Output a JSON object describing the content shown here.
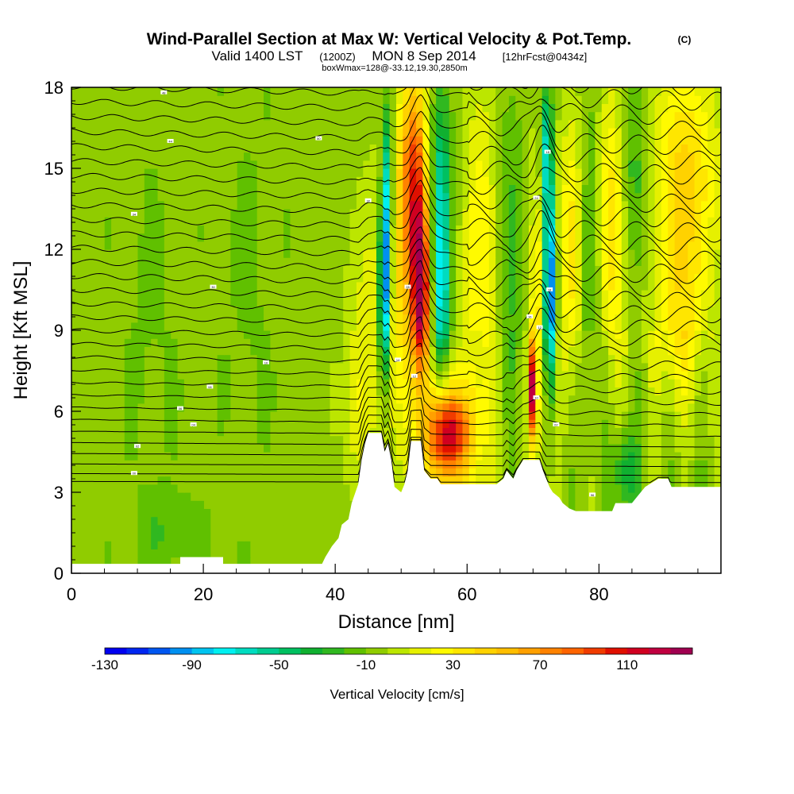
{
  "header": {
    "title": "Wind-Parallel Section at Max W: Vertical Velocity & Pot.Temp.",
    "copyright": "(C)",
    "valid_prefix": "Valid 1400 LST",
    "valid_utc": "(1200Z)",
    "valid_date": "MON 8 Sep 2014",
    "forecast": "[12hrFcst@0434z]",
    "box_info": "boxWmax=128@-33.12,19.30,2850m"
  },
  "chart_data": {
    "type": "heatmap",
    "xlabel": "Distance [nm]",
    "ylabel": "Height [Kft MSL]",
    "xlim": [
      0,
      98.5
    ],
    "ylim": [
      0,
      18
    ],
    "x_ticks": [
      "0",
      "20",
      "40",
      "60",
      "80"
    ],
    "x_tick_values": [
      0,
      20,
      40,
      60,
      80
    ],
    "y_ticks": [
      "0",
      "3",
      "6",
      "9",
      "12",
      "15",
      "18"
    ],
    "y_tick_values": [
      0,
      3,
      6,
      9,
      12,
      15,
      18
    ],
    "background_value": -5,
    "features": [
      {
        "x": 47.5,
        "y": 10.5,
        "w": 0.9,
        "h": 3.2,
        "v": -120
      },
      {
        "x": 48.0,
        "y": 14.5,
        "w": 0.8,
        "h": 3.0,
        "v": -70
      },
      {
        "x": 53.0,
        "y": 10.5,
        "w": 1.4,
        "h": 3.0,
        "v": 120
      },
      {
        "x": 52.0,
        "y": 15.0,
        "w": 1.8,
        "h": 3.5,
        "v": 70
      },
      {
        "x": 50.5,
        "y": 11.5,
        "w": 3.0,
        "h": 6.0,
        "v": 40
      },
      {
        "x": 56.0,
        "y": 10.5,
        "w": 1.4,
        "h": 3.5,
        "v": -80
      },
      {
        "x": 56.0,
        "y": 15.0,
        "w": 1.5,
        "h": 3.0,
        "v": -45
      },
      {
        "x": 57.0,
        "y": 5.2,
        "w": 3.0,
        "h": 1.4,
        "v": 75
      },
      {
        "x": 57.5,
        "y": 5.0,
        "w": 5.0,
        "h": 2.8,
        "v": 45
      },
      {
        "x": 62.0,
        "y": 12.0,
        "w": 2.5,
        "h": 6.0,
        "v": 30
      },
      {
        "x": 66.5,
        "y": 12.0,
        "w": 2.0,
        "h": 5.0,
        "v": -25
      },
      {
        "x": 70.0,
        "y": 6.8,
        "w": 0.5,
        "h": 1.8,
        "v": 120
      },
      {
        "x": 71.0,
        "y": 9.5,
        "w": 1.5,
        "h": 6.0,
        "v": 35
      },
      {
        "x": 72.5,
        "y": 10.5,
        "w": 0.9,
        "h": 3.5,
        "v": -130
      },
      {
        "x": 72.0,
        "y": 15.5,
        "w": 0.9,
        "h": 2.5,
        "v": -70
      },
      {
        "x": 76.0,
        "y": 12.0,
        "w": 2.0,
        "h": 5.0,
        "v": 40
      },
      {
        "x": 78.5,
        "y": 12.0,
        "w": 2.0,
        "h": 5.5,
        "v": -35
      },
      {
        "x": 82.0,
        "y": 13.0,
        "w": 2.5,
        "h": 5.0,
        "v": 45
      },
      {
        "x": 85.0,
        "y": 14.5,
        "w": 2.5,
        "h": 4.0,
        "v": -35
      },
      {
        "x": 93.0,
        "y": 14.5,
        "w": 5.0,
        "h": 4.5,
        "v": 45
      },
      {
        "x": 92.0,
        "y": 9.0,
        "w": 4.0,
        "h": 3.0,
        "v": 25
      },
      {
        "x": 84.0,
        "y": 3.8,
        "w": 1.8,
        "h": 1.5,
        "v": -40
      },
      {
        "x": 45.0,
        "y": 9.0,
        "w": 3.0,
        "h": 5.0,
        "v": 15
      },
      {
        "x": 43.0,
        "y": 6.0,
        "w": 2.0,
        "h": 2.5,
        "v": 10
      },
      {
        "x": 12.0,
        "y": 9.0,
        "w": 4.0,
        "h": 7.0,
        "v": -12
      },
      {
        "x": 27.0,
        "y": 11.0,
        "w": 4.0,
        "h": 7.0,
        "v": -12
      },
      {
        "x": 15.0,
        "y": 1.5,
        "w": 6.0,
        "h": 1.5,
        "v": -18
      }
    ],
    "terrain": [
      [
        0,
        0.35
      ],
      [
        16.5,
        0.35
      ],
      [
        16.5,
        0.6
      ],
      [
        23,
        0.6
      ],
      [
        23,
        0.35
      ],
      [
        38,
        0.35
      ],
      [
        38.5,
        0.6
      ],
      [
        39.5,
        1.0
      ],
      [
        40.5,
        1.3
      ],
      [
        41.0,
        1.8
      ],
      [
        42.0,
        2.0
      ],
      [
        42.5,
        2.6
      ],
      [
        43.5,
        3.3
      ],
      [
        44.0,
        4.2
      ],
      [
        44.5,
        4.8
      ],
      [
        45.0,
        5.2
      ],
      [
        47.0,
        5.2
      ],
      [
        47.5,
        4.5
      ],
      [
        48.0,
        4.8
      ],
      [
        48.5,
        4.2
      ],
      [
        49.0,
        3.2
      ],
      [
        50.0,
        3.0
      ],
      [
        50.5,
        3.3
      ],
      [
        51.0,
        3.8
      ],
      [
        51.5,
        4.9
      ],
      [
        53.0,
        4.9
      ],
      [
        53.5,
        3.8
      ],
      [
        54.5,
        3.5
      ],
      [
        55.5,
        3.5
      ],
      [
        56.0,
        3.3
      ],
      [
        64.5,
        3.3
      ],
      [
        65.5,
        3.5
      ],
      [
        66.0,
        3.8
      ],
      [
        67.0,
        3.5
      ],
      [
        67.5,
        3.8
      ],
      [
        68.5,
        4.2
      ],
      [
        71.0,
        4.2
      ],
      [
        71.5,
        3.8
      ],
      [
        72.0,
        3.5
      ],
      [
        72.5,
        3.2
      ],
      [
        73.0,
        3.0
      ],
      [
        74.0,
        2.8
      ],
      [
        74.5,
        2.6
      ],
      [
        75.5,
        2.4
      ],
      [
        76.5,
        2.3
      ],
      [
        82.0,
        2.3
      ],
      [
        82.5,
        2.6
      ],
      [
        85.0,
        2.6
      ],
      [
        86.0,
        2.9
      ],
      [
        87.0,
        3.2
      ],
      [
        89.0,
        3.5
      ],
      [
        90.5,
        3.5
      ],
      [
        91.0,
        3.2
      ],
      [
        98.5,
        3.2
      ]
    ],
    "potential_temperature_contours": {
      "count": 32,
      "labels": [
        {
          "x": 14,
          "y": 17.8,
          "text": "48"
        },
        {
          "x": 15,
          "y": 16.0,
          "text": "44"
        },
        {
          "x": 37.5,
          "y": 16.1,
          "text": "50"
        },
        {
          "x": 9.5,
          "y": 13.3,
          "text": "34"
        },
        {
          "x": 45,
          "y": 13.8,
          "text": "32"
        },
        {
          "x": 21.5,
          "y": 10.6,
          "text": "30"
        },
        {
          "x": 51,
          "y": 10.6,
          "text": "28"
        },
        {
          "x": 70.5,
          "y": 13.9,
          "text": "24"
        },
        {
          "x": 72.2,
          "y": 15.6,
          "text": "18"
        },
        {
          "x": 72.5,
          "y": 10.5,
          "text": "18"
        },
        {
          "x": 69.5,
          "y": 9.5,
          "text": "16"
        },
        {
          "x": 71,
          "y": 9.1,
          "text": "12"
        },
        {
          "x": 49.5,
          "y": 7.9,
          "text": "14"
        },
        {
          "x": 29.5,
          "y": 7.8,
          "text": "10"
        },
        {
          "x": 52,
          "y": 7.3,
          "text": "12"
        },
        {
          "x": 21,
          "y": 6.9,
          "text": "08"
        },
        {
          "x": 16.5,
          "y": 6.1,
          "text": "06"
        },
        {
          "x": 18.5,
          "y": 5.5,
          "text": "04"
        },
        {
          "x": 73.5,
          "y": 5.5,
          "text": "02"
        },
        {
          "x": 10,
          "y": 4.7,
          "text": "02"
        },
        {
          "x": 9.5,
          "y": 3.7,
          "text": "00"
        },
        {
          "x": 70.5,
          "y": 6.5,
          "text": "10"
        },
        {
          "x": 79,
          "y": 2.9,
          "text": "96"
        }
      ]
    },
    "colorbar": {
      "label": "Vertical Velocity [cm/s]",
      "min": -130,
      "step": 10,
      "ticks": [
        "-130",
        "-90",
        "-50",
        "-10",
        "30",
        "70",
        "110"
      ],
      "tick_values": [
        -130,
        -90,
        -50,
        -10,
        30,
        70,
        110
      ],
      "colors": [
        "#0000f0",
        "#0026f0",
        "#0056f0",
        "#0090f0",
        "#00c4f0",
        "#00f0f0",
        "#00dcc0",
        "#00cc90",
        "#00c060",
        "#10b030",
        "#30b820",
        "#60c000",
        "#90cc00",
        "#bce600",
        "#e6f000",
        "#fffa00",
        "#ffe600",
        "#ffd200",
        "#ffbe00",
        "#ffa000",
        "#ff8200",
        "#ff6400",
        "#f03c00",
        "#e01000",
        "#d00020",
        "#c00040",
        "#a00050"
      ]
    }
  }
}
